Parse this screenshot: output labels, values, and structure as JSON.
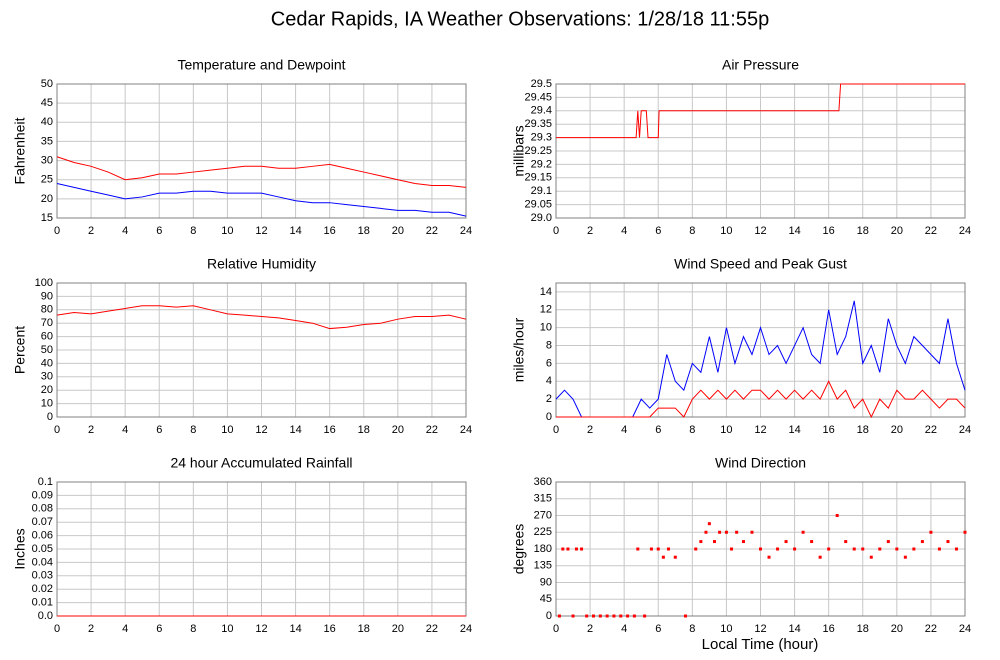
{
  "title": "Cedar Rapids, IA Weather Observations: 1/28/18 11:55p",
  "xlabel": "Local Time (hour)",
  "chart_data": [
    {
      "type": "line",
      "title": "Temperature and Dewpoint",
      "ylabel": "Fahrenheit",
      "grid": true,
      "x": [
        0,
        1,
        2,
        3,
        4,
        5,
        6,
        7,
        8,
        9,
        10,
        11,
        12,
        13,
        14,
        15,
        16,
        17,
        18,
        19,
        20,
        21,
        22,
        23,
        24
      ],
      "series": [
        {
          "color": "#ff0000",
          "values": [
            31,
            29.5,
            28.5,
            27,
            25,
            25.5,
            26.5,
            26.5,
            27,
            27.5,
            28,
            28.5,
            28.5,
            28,
            28,
            28.5,
            29,
            28,
            27,
            26,
            25,
            24,
            23.5,
            23.5,
            23
          ]
        },
        {
          "color": "#0000ff",
          "values": [
            24,
            23,
            22,
            21,
            20,
            20.5,
            21.5,
            21.5,
            22,
            22,
            21.5,
            21.5,
            21.5,
            20.5,
            19.5,
            19,
            19,
            18.5,
            18,
            17.5,
            17,
            17,
            16.5,
            16.5,
            15.5
          ]
        }
      ],
      "xlim": [
        0,
        24
      ],
      "xticks": [
        0,
        2,
        4,
        6,
        8,
        10,
        12,
        14,
        16,
        18,
        20,
        22,
        24
      ],
      "ylim": [
        15,
        50
      ],
      "yticks": [
        15,
        20,
        25,
        30,
        35,
        40,
        45,
        50
      ]
    },
    {
      "type": "line",
      "title": "Air Pressure",
      "ylabel": "millibars",
      "grid": true,
      "x": [
        0,
        4.7,
        4.8,
        4.9,
        5.0,
        5.3,
        5.4,
        6.0,
        6.05,
        16.6,
        16.7,
        24
      ],
      "series": [
        {
          "color": "#ff0000",
          "values": [
            29.3,
            29.3,
            29.4,
            29.3,
            29.4,
            29.4,
            29.3,
            29.3,
            29.4,
            29.4,
            29.5,
            29.5
          ]
        }
      ],
      "xlim": [
        0,
        24
      ],
      "xticks": [
        0,
        2,
        4,
        6,
        8,
        10,
        12,
        14,
        16,
        18,
        20,
        22,
        24
      ],
      "ylim": [
        29,
        29.5
      ],
      "yticks": [
        {
          "value": 29,
          "label": "29.0"
        },
        29.05,
        29.1,
        29.15,
        29.2,
        29.25,
        29.3,
        29.35,
        29.4,
        29.45,
        29.5
      ]
    },
    {
      "type": "line",
      "title": "Relative Humidity",
      "ylabel": "Percent",
      "grid": true,
      "x": [
        0,
        1,
        2,
        3,
        4,
        5,
        6,
        7,
        8,
        9,
        10,
        11,
        12,
        13,
        14,
        15,
        16,
        17,
        18,
        19,
        20,
        21,
        22,
        23,
        24
      ],
      "series": [
        {
          "color": "#ff0000",
          "values": [
            76,
            78,
            77,
            79,
            81,
            83,
            83,
            82,
            83,
            80,
            77,
            76,
            75,
            74,
            72,
            70,
            66,
            67,
            69,
            70,
            73,
            75,
            75,
            76,
            73
          ]
        }
      ],
      "xlim": [
        0,
        24
      ],
      "xticks": [
        0,
        2,
        4,
        6,
        8,
        10,
        12,
        14,
        16,
        18,
        20,
        22,
        24
      ],
      "ylim": [
        0,
        100
      ],
      "yticks": [
        0,
        10,
        20,
        30,
        40,
        50,
        60,
        70,
        80,
        90,
        100
      ]
    },
    {
      "type": "line",
      "title": "Wind Speed and Peak Gust",
      "ylabel": "miles/hour",
      "grid": true,
      "x": [
        0,
        0.5,
        1,
        1.5,
        2,
        2.5,
        3,
        3.5,
        4,
        4.5,
        5,
        5.5,
        6,
        6.5,
        7,
        7.5,
        8,
        8.5,
        9,
        9.5,
        10,
        10.5,
        11,
        11.5,
        12,
        12.5,
        13,
        13.5,
        14,
        14.5,
        15,
        15.5,
        16,
        16.5,
        17,
        17.5,
        18,
        18.5,
        19,
        19.5,
        20,
        20.5,
        21,
        21.5,
        22,
        22.5,
        23,
        23.5,
        24
      ],
      "series": [
        {
          "color": "#0000ff",
          "values": [
            2,
            3,
            2,
            0,
            0,
            0,
            0,
            0,
            0,
            0,
            2,
            1,
            2,
            7,
            4,
            3,
            6,
            5,
            9,
            5,
            10,
            6,
            9,
            7,
            10,
            7,
            8,
            6,
            8,
            10,
            7,
            6,
            12,
            7,
            9,
            13,
            6,
            8,
            5,
            11,
            8,
            6,
            9,
            8,
            7,
            6,
            11,
            6,
            3
          ]
        },
        {
          "color": "#ff0000",
          "values": [
            0,
            0,
            0,
            0,
            0,
            0,
            0,
            0,
            0,
            0,
            0,
            0,
            1,
            1,
            1,
            0,
            2,
            3,
            2,
            3,
            2,
            3,
            2,
            3,
            3,
            2,
            3,
            2,
            3,
            2,
            3,
            2,
            4,
            2,
            3,
            1,
            2,
            0,
            2,
            1,
            3,
            2,
            2,
            3,
            2,
            1,
            2,
            2,
            1
          ]
        }
      ],
      "xlim": [
        0,
        24
      ],
      "xticks": [
        0,
        2,
        4,
        6,
        8,
        10,
        12,
        14,
        16,
        18,
        20,
        22,
        24
      ],
      "ylim": [
        0,
        15
      ],
      "yticks": [
        0,
        2,
        4,
        6,
        8,
        10,
        12,
        14
      ]
    },
    {
      "type": "line",
      "title": "24 hour Accumulated Rainfall",
      "ylabel": "Inches",
      "grid": true,
      "x": [
        0,
        24
      ],
      "series": [
        {
          "color": "#ff0000",
          "values": [
            0,
            0
          ]
        }
      ],
      "xlim": [
        0,
        24
      ],
      "xticks": [
        0,
        2,
        4,
        6,
        8,
        10,
        12,
        14,
        16,
        18,
        20,
        22,
        24
      ],
      "ylim": [
        0,
        0.1
      ],
      "yticks": [
        {
          "value": 0,
          "label": "0.0"
        },
        0.01,
        0.02,
        0.03,
        0.04,
        0.05,
        0.06,
        0.07,
        0.08,
        0.09,
        0.1
      ]
    },
    {
      "type": "scatter",
      "title": "Wind Direction",
      "ylabel": "degrees",
      "grid": true,
      "x": [
        0.2,
        0.4,
        0.7,
        1.0,
        1.2,
        1.5,
        1.8,
        2.2,
        2.6,
        3.0,
        3.4,
        3.8,
        4.2,
        4.6,
        4.8,
        5.2,
        5.6,
        6.0,
        6.3,
        6.6,
        7.0,
        7.6,
        8.2,
        8.5,
        8.8,
        9.0,
        9.3,
        9.6,
        10.0,
        10.3,
        10.6,
        11.0,
        11.5,
        12.0,
        12.5,
        13.0,
        13.5,
        14.0,
        14.5,
        15.0,
        15.5,
        16.0,
        16.5,
        17.0,
        17.5,
        18.0,
        18.5,
        19.0,
        19.5,
        20.0,
        20.5,
        21.0,
        21.5,
        22.0,
        22.5,
        23.0,
        23.5,
        24.0
      ],
      "series": [
        {
          "color": "#ff0000",
          "values": [
            0,
            180,
            180,
            0,
            180,
            180,
            0,
            0,
            0,
            0,
            0,
            0,
            0,
            0,
            180,
            0,
            180,
            180,
            158,
            180,
            158,
            0,
            180,
            200,
            225,
            248,
            200,
            225,
            225,
            180,
            225,
            200,
            225,
            180,
            158,
            180,
            200,
            180,
            225,
            200,
            158,
            180,
            270,
            200,
            180,
            180,
            158,
            180,
            200,
            180,
            158,
            180,
            200,
            225,
            180,
            200,
            180,
            225
          ]
        }
      ],
      "xlim": [
        0,
        24
      ],
      "xticks": [
        0,
        2,
        4,
        6,
        8,
        10,
        12,
        14,
        16,
        18,
        20,
        22,
        24
      ],
      "ylim": [
        0,
        360
      ],
      "yticks": [
        0,
        45,
        90,
        135,
        180,
        225,
        270,
        315,
        360
      ]
    }
  ]
}
